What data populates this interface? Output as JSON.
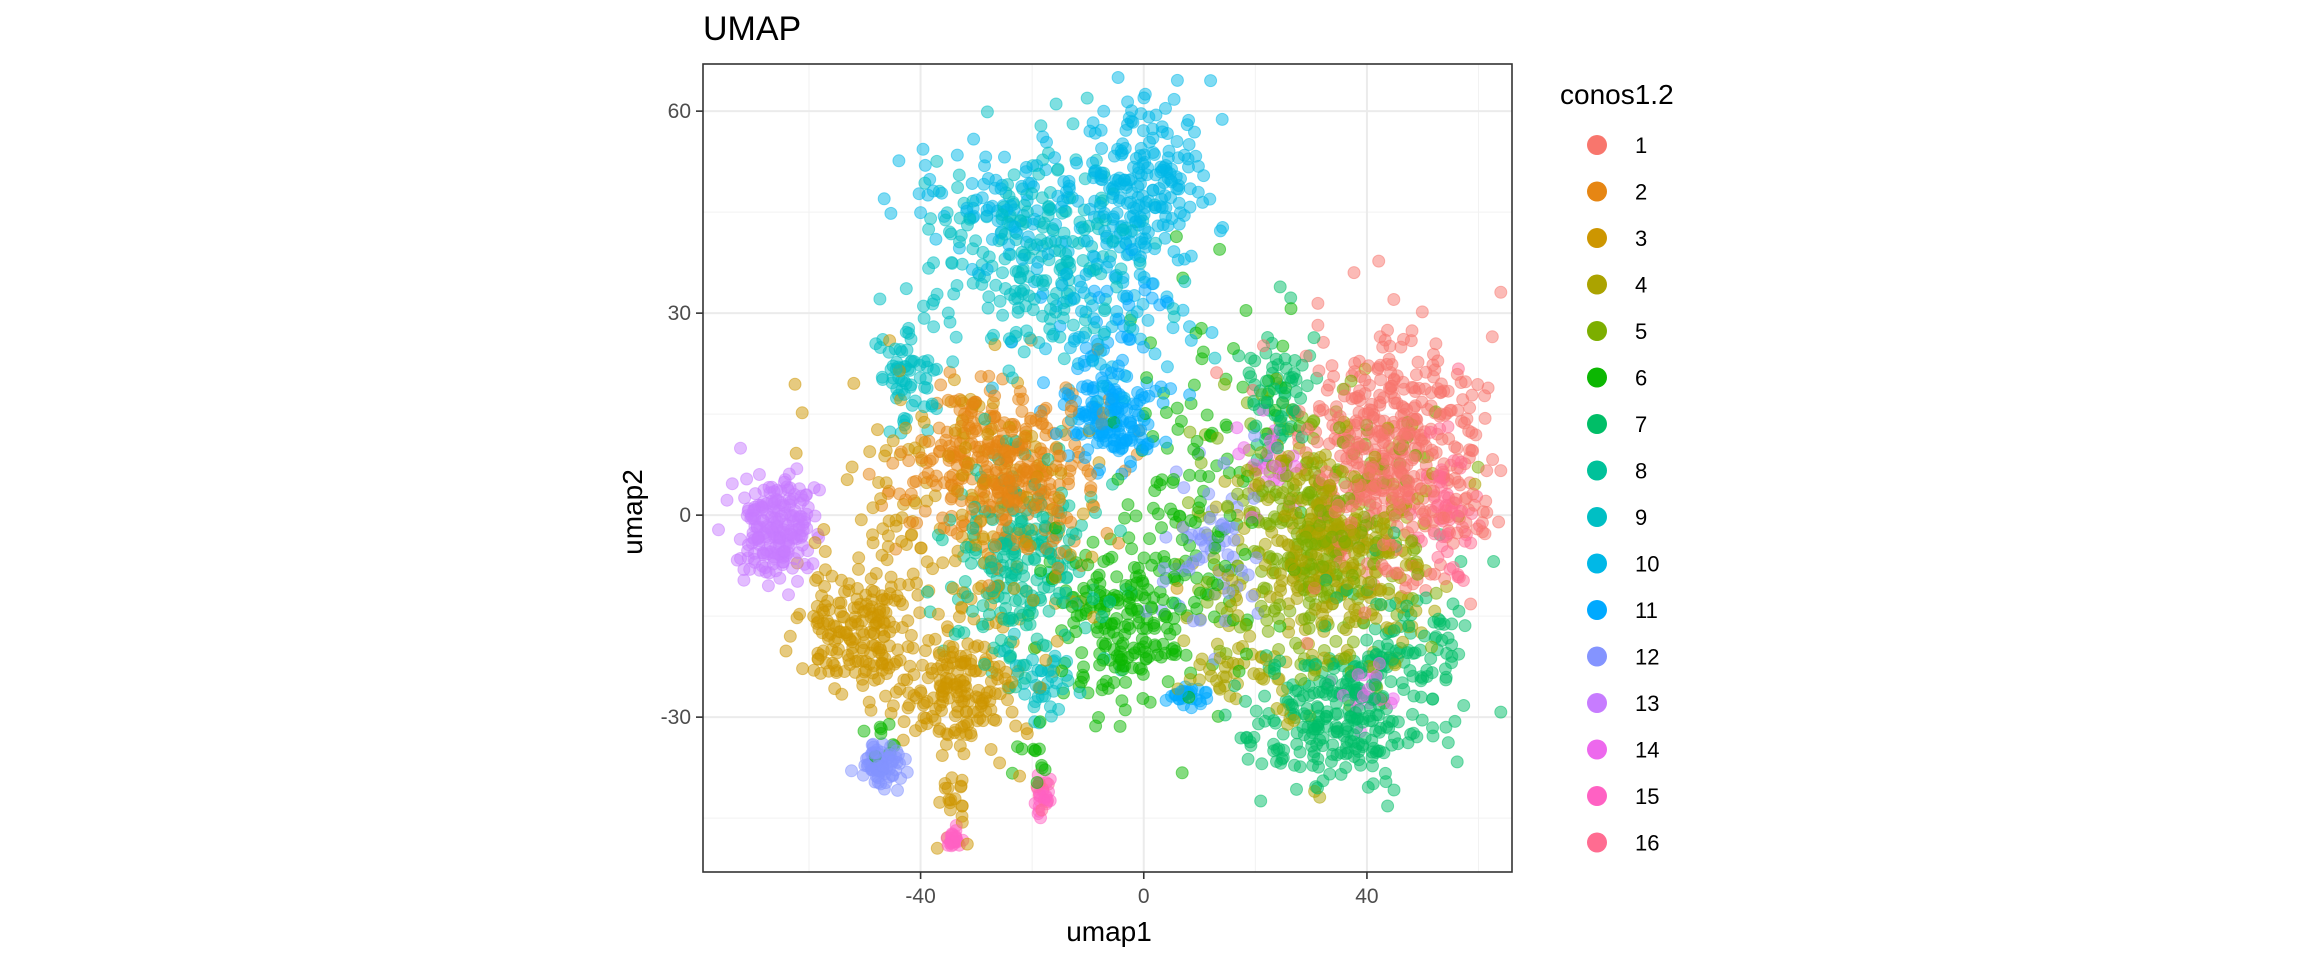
{
  "chart_data": {
    "type": "scatter",
    "title": "UMAP",
    "xlabel": "umap1",
    "ylabel": "umap2",
    "xlim": [
      -79,
      66
    ],
    "ylim": [
      -53,
      67
    ],
    "x_ticks": [
      -40,
      0,
      40
    ],
    "x_tick_labels": [
      "-40",
      "0",
      "40"
    ],
    "y_ticks": [
      -30,
      0,
      30,
      60
    ],
    "y_tick_labels": [
      "-30",
      "0",
      "30",
      "60"
    ],
    "grid": true,
    "legend": {
      "title": "conos1.2",
      "placement": "right"
    },
    "point_alpha": 0.5,
    "series": [
      {
        "name": "1",
        "color": "#F8766D",
        "clusters": [
          {
            "cx": 45,
            "cy": 8,
            "sx": 8,
            "sy": 9,
            "n": 480
          }
        ]
      },
      {
        "name": "2",
        "color": "#E68613",
        "clusters": [
          {
            "cx": -26,
            "cy": 7,
            "sx": 8,
            "sy": 6,
            "n": 360
          }
        ]
      },
      {
        "name": "3",
        "color": "#CD9600",
        "clusters": [
          {
            "cx": -50,
            "cy": -17,
            "sx": 5,
            "sy": 5,
            "n": 180
          },
          {
            "cx": -33,
            "cy": -26,
            "sx": 5,
            "sy": 5,
            "n": 160
          },
          {
            "cx": -34,
            "cy": 0,
            "sx": 12,
            "sy": 12,
            "n": 200
          },
          {
            "cx": -34,
            "cy": -42,
            "sx": 1.5,
            "sy": 4,
            "n": 20
          }
        ]
      },
      {
        "name": "4",
        "color": "#ABA300",
        "clusters": [
          {
            "cx": 34,
            "cy": -5,
            "sx": 9,
            "sy": 9,
            "n": 360
          },
          {
            "cx": 18,
            "cy": -24,
            "sx": 4,
            "sy": 3,
            "n": 40
          }
        ]
      },
      {
        "name": "5",
        "color": "#7CAE00",
        "clusters": [
          {
            "cx": 30,
            "cy": -3,
            "sx": 9,
            "sy": 10,
            "n": 320
          }
        ]
      },
      {
        "name": "6",
        "color": "#0CB702",
        "clusters": [
          {
            "cx": -3,
            "cy": -16,
            "sx": 7,
            "sy": 6,
            "n": 210
          },
          {
            "cx": 12,
            "cy": 5,
            "sx": 8,
            "sy": 14,
            "n": 110
          },
          {
            "cx": -20,
            "cy": -36,
            "sx": 2,
            "sy": 2,
            "n": 12
          },
          {
            "cx": -47,
            "cy": -33,
            "sx": 2,
            "sy": 2,
            "n": 10
          }
        ]
      },
      {
        "name": "7",
        "color": "#00BE67",
        "clusters": [
          {
            "cx": 34,
            "cy": -30,
            "sx": 8,
            "sy": 5,
            "n": 260
          },
          {
            "cx": 48,
            "cy": -18,
            "sx": 5,
            "sy": 6,
            "n": 90
          },
          {
            "cx": 24,
            "cy": 18,
            "sx": 3,
            "sy": 5,
            "n": 70
          }
        ]
      },
      {
        "name": "8",
        "color": "#00C19A",
        "clusters": [
          {
            "cx": -22,
            "cy": -8,
            "sx": 7,
            "sy": 8,
            "n": 230
          }
        ]
      },
      {
        "name": "9",
        "color": "#00BFC4",
        "clusters": [
          {
            "cx": -18,
            "cy": 38,
            "sx": 9,
            "sy": 8,
            "n": 240
          },
          {
            "cx": -42,
            "cy": 22,
            "sx": 3,
            "sy": 5,
            "n": 70
          },
          {
            "cx": -18,
            "cy": -24,
            "sx": 3,
            "sy": 3,
            "n": 40
          }
        ]
      },
      {
        "name": "10",
        "color": "#00B8E7",
        "clusters": [
          {
            "cx": 0,
            "cy": 50,
            "sx": 5,
            "sy": 6,
            "n": 170
          },
          {
            "cx": -24,
            "cy": 45,
            "sx": 10,
            "sy": 5,
            "n": 90
          },
          {
            "cx": -5,
            "cy": 35,
            "sx": 8,
            "sy": 10,
            "n": 110
          }
        ]
      },
      {
        "name": "11",
        "color": "#00A9FF",
        "clusters": [
          {
            "cx": -6,
            "cy": 15,
            "sx": 4,
            "sy": 4,
            "n": 150
          },
          {
            "cx": 8,
            "cy": -27,
            "sx": 2,
            "sy": 1,
            "n": 30
          },
          {
            "cx": -5,
            "cy": 28,
            "sx": 6,
            "sy": 6,
            "n": 40
          }
        ]
      },
      {
        "name": "12",
        "color": "#8494FF",
        "clusters": [
          {
            "cx": -47,
            "cy": -37,
            "sx": 1.8,
            "sy": 1.5,
            "n": 80
          },
          {
            "cx": 12,
            "cy": -5,
            "sx": 5,
            "sy": 6,
            "n": 60
          }
        ]
      },
      {
        "name": "13",
        "color": "#C77CFF",
        "clusters": [
          {
            "cx": -66,
            "cy": -2,
            "sx": 3.5,
            "sy": 4,
            "n": 200
          }
        ]
      },
      {
        "name": "14",
        "color": "#ED68ED",
        "clusters": [
          {
            "cx": 22,
            "cy": 8,
            "sx": 3,
            "sy": 3,
            "n": 30
          },
          {
            "cx": 40,
            "cy": -25,
            "sx": 3,
            "sy": 2,
            "n": 20
          }
        ]
      },
      {
        "name": "15",
        "color": "#FF61C3",
        "clusters": [
          {
            "cx": -34,
            "cy": -48,
            "sx": 0.6,
            "sy": 0.8,
            "n": 25
          },
          {
            "cx": -18,
            "cy": -42,
            "sx": 1,
            "sy": 1.5,
            "n": 20
          }
        ]
      },
      {
        "name": "16",
        "color": "#FF6C91",
        "clusters": [
          {
            "cx": 54,
            "cy": 0,
            "sx": 3,
            "sy": 6,
            "n": 60
          },
          {
            "cx": -18,
            "cy": -40,
            "sx": 1,
            "sy": 1.5,
            "n": 8
          }
        ]
      }
    ]
  }
}
